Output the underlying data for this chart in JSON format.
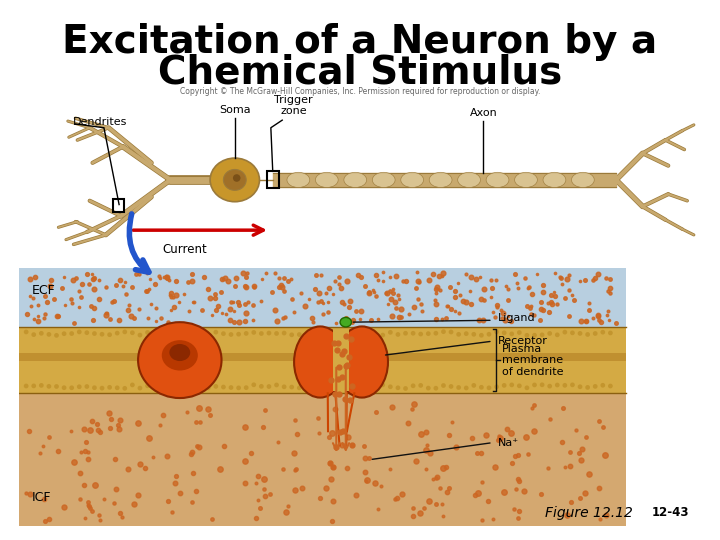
{
  "title_line1": "Excitation of a Neuron by a",
  "title_line2": "Chemical Stimulus",
  "copyright_text": "Copyright © The McGraw-Hill Companies, Inc. Permission required for reproduction or display.",
  "title_fontsize": 28,
  "bg_color": "#ffffff",
  "figure_label": "Figure 12.12",
  "figure_number": "12-43",
  "labels": {
    "dendrites": "Dendrites",
    "soma": "Soma",
    "trigger_zone": "Trigger\nzone",
    "axon": "Axon",
    "current": "Current",
    "ecf": "ECF",
    "icf": "ICF",
    "ligand": "Ligand",
    "receptor": "Receptor",
    "plasma_membrane": "Plasma\nmembrane\nof dendrite",
    "na_plus": "Na⁺"
  },
  "neuron_color": "#c8a96e",
  "neuron_outline": "#9b7a3a",
  "soma_fill": "#c8962a",
  "soma_nucleus": "#a07028",
  "ecf_color": "#b8cfe0",
  "ecf_dot_color": "#cc6622",
  "membrane_outer_color": "#d4aa44",
  "membrane_inner_color": "#c89030",
  "icf_color": "#d4a870",
  "channel_color": "#cc4400",
  "current_arrow_color": "#cc0000",
  "blue_arrow_color": "#2255cc",
  "na_dot_color": "#cc6622",
  "ligand_dot_color": "#44aa22",
  "annotation_line_color": "#111111"
}
